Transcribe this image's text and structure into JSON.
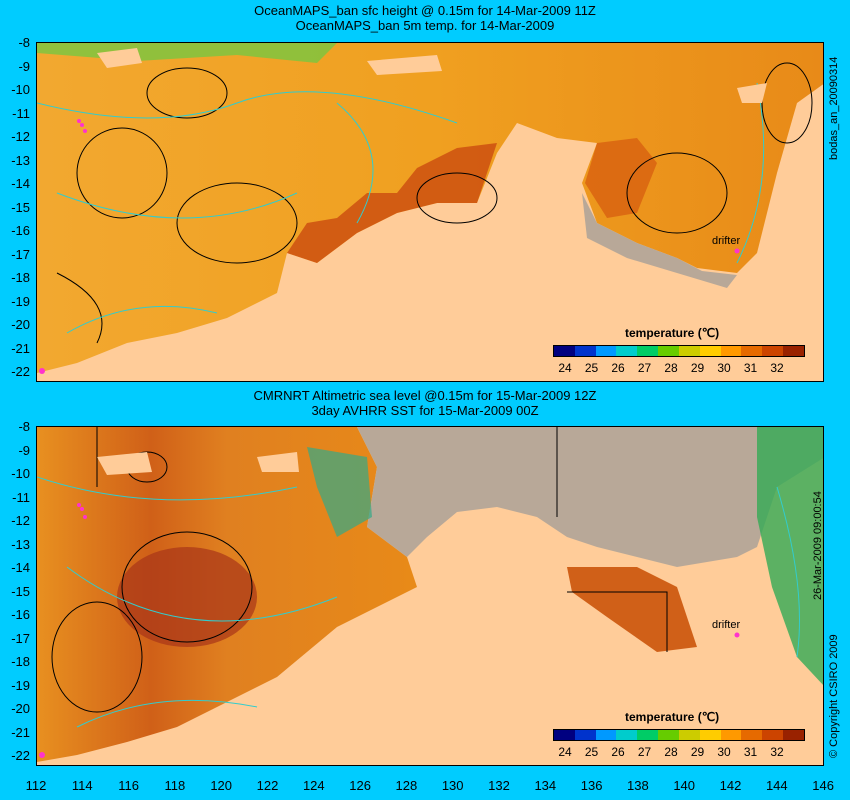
{
  "top_panel": {
    "title_line1": "OceanMAPS_ban sfc height @ 0.15m for 14-Mar-2009 11Z",
    "title_line2": "OceanMAPS_ban 5m temp. for 14-Mar-2009",
    "side_label": "bodas_an_20090314",
    "drifter_label": "drifter",
    "colorbar_title": "temperature (℃)"
  },
  "bottom_panel": {
    "title_line1": "CMRNRT Altimetric sea level  @0.15m  for 15-Mar-2009 12Z",
    "title_line2": "3day AVHRR SST for 15-Mar-2009 00Z",
    "side_label_date": "26-Mar-2009 09:00:54",
    "side_label_copyright": "© Copyright CSIRO 2009",
    "drifter_label": "drifter",
    "colorbar_title": "temperature (℃)"
  },
  "y_ticks": [
    "-8",
    "-9",
    "-10",
    "-11",
    "-12",
    "-13",
    "-14",
    "-15",
    "-16",
    "-17",
    "-18",
    "-19",
    "-20",
    "-21",
    "-22"
  ],
  "x_ticks": [
    "112",
    "114",
    "116",
    "118",
    "120",
    "122",
    "124",
    "126",
    "128",
    "130",
    "132",
    "134",
    "136",
    "138",
    "140",
    "142",
    "144",
    "146"
  ],
  "colorbar_labels": [
    "24",
    "25",
    "26",
    "27",
    "28",
    "29",
    "30",
    "31",
    "32"
  ],
  "colorbar_colors": [
    "#000080",
    "#0033cc",
    "#0099ff",
    "#00cccc",
    "#00cc66",
    "#66cc00",
    "#cccc00",
    "#ffcc00",
    "#ff9900",
    "#e66a00",
    "#cc4400",
    "#992200"
  ],
  "colors": {
    "background": "#00ccff",
    "land": "#ffcc99",
    "shelf": "#b8a898",
    "sea_warm": "#f0a020",
    "sea_hot": "#b83010"
  }
}
